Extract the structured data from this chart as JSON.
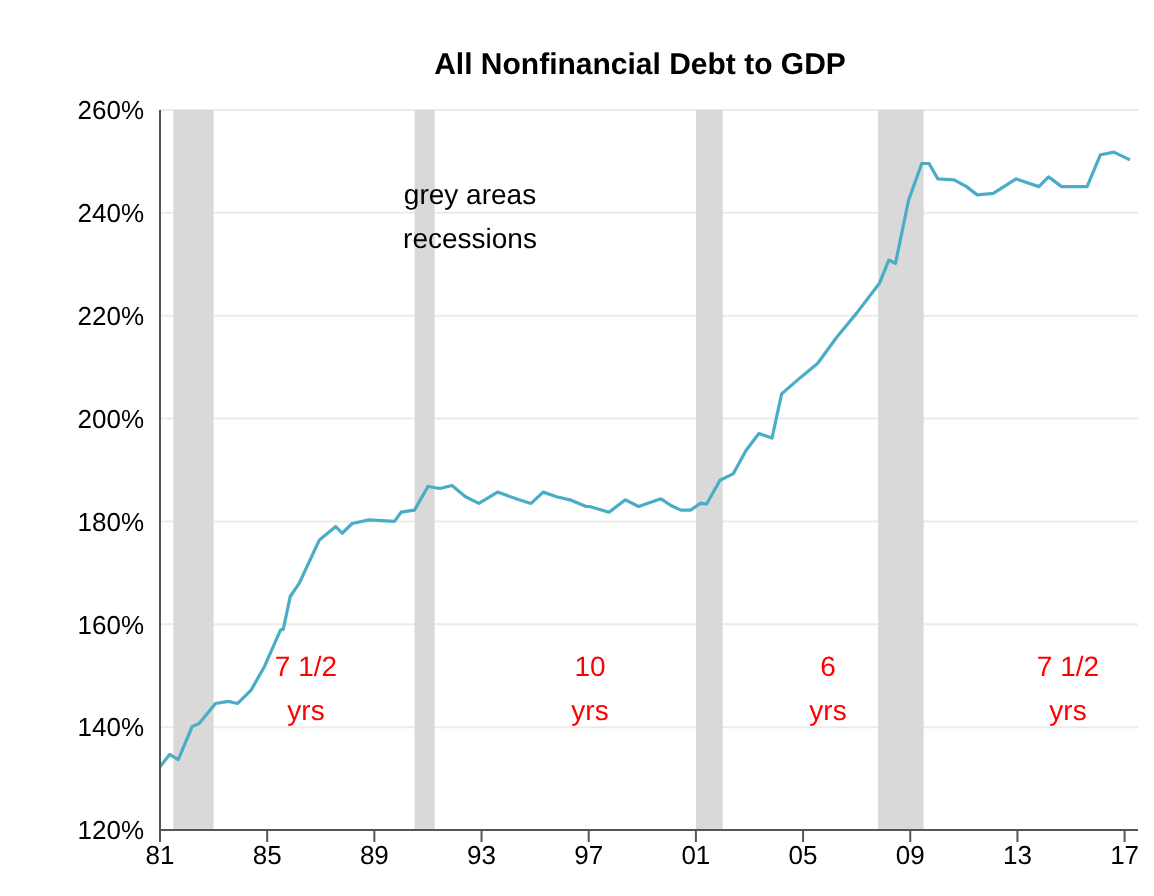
{
  "chart_data": {
    "type": "line",
    "title": "All Nonfinancial Debt to GDP",
    "x": [
      1981.0,
      1981.36,
      1981.68,
      1982.2,
      1982.46,
      1983.07,
      1983.55,
      1983.9,
      1984.4,
      1984.9,
      1985.5,
      1985.6,
      1985.86,
      1986.2,
      1986.6,
      1986.95,
      1987.56,
      1987.8,
      1988.17,
      1988.8,
      1989.75,
      1990.0,
      1990.5,
      1991.0,
      1991.45,
      1991.9,
      1992.4,
      1992.9,
      1993.6,
      1994.4,
      1994.85,
      1995.3,
      1995.8,
      1996.3,
      1996.9,
      1997.03,
      1997.76,
      1998.37,
      1998.86,
      1999.7,
      2000.07,
      2000.44,
      2000.8,
      2001.17,
      2001.4,
      2001.9,
      2002.4,
      2002.87,
      2003.35,
      2003.84,
      2004.2,
      2004.93,
      2005.54,
      2006.27,
      2007.0,
      2007.85,
      2008.2,
      2008.45,
      2008.94,
      2009.43,
      2009.7,
      2010.03,
      2010.64,
      2011.1,
      2011.5,
      2012.1,
      2012.95,
      2013.8,
      2014.16,
      2014.65,
      2015.6,
      2016.1,
      2016.6,
      2017.2
    ],
    "series": [
      {
        "color": "#4bacc6",
        "values": [
          132.3,
          134.7,
          133.7,
          140.1,
          140.7,
          144.6,
          145.0,
          144.6,
          147.2,
          151.8,
          158.9,
          159,
          165.4,
          168,
          172.5,
          176.4,
          179.0,
          177.7,
          179.6,
          180.3,
          180,
          181.8,
          182.2,
          186.8,
          186.4,
          187.0,
          184.8,
          183.5,
          185.7,
          184.2,
          183.5,
          185.7,
          184.8,
          184.2,
          182.9,
          182.9,
          181.8,
          184.2,
          182.9,
          184.4,
          183.1,
          182.2,
          182.2,
          183.5,
          183.4,
          188,
          189.3,
          193.8,
          197.1,
          196.2,
          204.8,
          208.1,
          210.7,
          215.9,
          220.5,
          226.3,
          230.8,
          230.2,
          242.5,
          249.6,
          249.6,
          246.6,
          246.4,
          245.1,
          243.5,
          243.8,
          246.6,
          245.1,
          247,
          245.1,
          245.1,
          251.3,
          251.8,
          250.3
        ]
      }
    ],
    "xlim": [
      1981,
      2017.5
    ],
    "xticks": [
      {
        "value": 1981,
        "label": "81"
      },
      {
        "value": 1985,
        "label": "85"
      },
      {
        "value": 1989,
        "label": "89"
      },
      {
        "value": 1993,
        "label": "93"
      },
      {
        "value": 1997,
        "label": "97"
      },
      {
        "value": 2001,
        "label": "01"
      },
      {
        "value": 2005,
        "label": "05"
      },
      {
        "value": 2009,
        "label": "09"
      },
      {
        "value": 2013,
        "label": "13"
      },
      {
        "value": 2017,
        "label": "17"
      }
    ],
    "ylim": [
      120,
      260
    ],
    "yticks": [
      {
        "value": 120,
        "label": "120%"
      },
      {
        "value": 140,
        "label": "140%"
      },
      {
        "value": 160,
        "label": "160%"
      },
      {
        "value": 180,
        "label": "180%"
      },
      {
        "value": 200,
        "label": "200%"
      },
      {
        "value": 220,
        "label": "220%"
      },
      {
        "value": 240,
        "label": "240%"
      },
      {
        "value": 260,
        "label": "260%"
      }
    ],
    "grid": "y",
    "bands": [
      {
        "axis": "x",
        "from": 1981.5,
        "to": 1983.0,
        "color": "#d9d9d9"
      },
      {
        "axis": "x",
        "from": 1990.5,
        "to": 1991.25,
        "color": "#d9d9d9"
      },
      {
        "axis": "x",
        "from": 2001.0,
        "to": 2002.0,
        "color": "#d9d9d9"
      },
      {
        "axis": "x",
        "from": 2007.8,
        "to": 2009.5,
        "color": "#d9d9d9"
      }
    ],
    "annotations": [
      "grey areas\nrecessions",
      "7 1/2\nyrs",
      "10\nyrs",
      "6\nyrs",
      "7 1/2\nyrs"
    ]
  }
}
